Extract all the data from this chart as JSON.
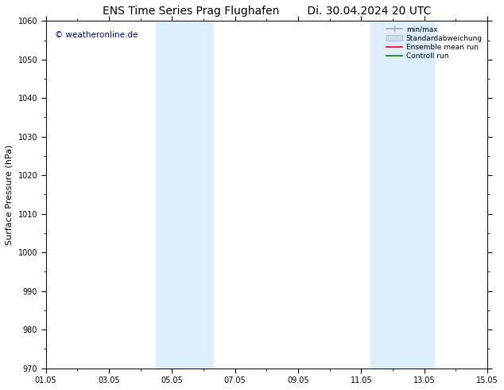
{
  "title_left": "ENS Time Series Prag Flughafen",
  "title_right": "Di. 30.04.2024 20 UTC",
  "ylabel": "Surface Pressure (hPa)",
  "xlim_start": 0,
  "xlim_end": 14,
  "ylim_bottom": 970,
  "ylim_top": 1060,
  "yticks": [
    970,
    980,
    990,
    1000,
    1010,
    1020,
    1030,
    1040,
    1050,
    1060
  ],
  "xtick_labels": [
    "01.05",
    "03.05",
    "05.05",
    "07.05",
    "09.05",
    "11.05",
    "13.05",
    "15.05"
  ],
  "xtick_positions": [
    0,
    2,
    4,
    6,
    8,
    10,
    12,
    14
  ],
  "shaded_regions": [
    {
      "x_start": 3.5,
      "x_end": 5.3
    },
    {
      "x_start": 10.3,
      "x_end": 12.3
    }
  ],
  "shade_color": "#ddeeff",
  "watermark_text": "© weatheronline.de",
  "watermark_color": "#0000cc",
  "legend_entries": [
    {
      "label": "min/max",
      "color": "#aaaaaa",
      "lw": 1
    },
    {
      "label": "Standardabweichung",
      "color": "#ccddef",
      "lw": 6
    },
    {
      "label": "Ensemble mean run",
      "color": "red",
      "lw": 1
    },
    {
      "label": "Controll run",
      "color": "green",
      "lw": 1
    }
  ],
  "background_color": "#ffffff",
  "title_fontsize": 10,
  "tick_fontsize": 7,
  "ylabel_fontsize": 8
}
